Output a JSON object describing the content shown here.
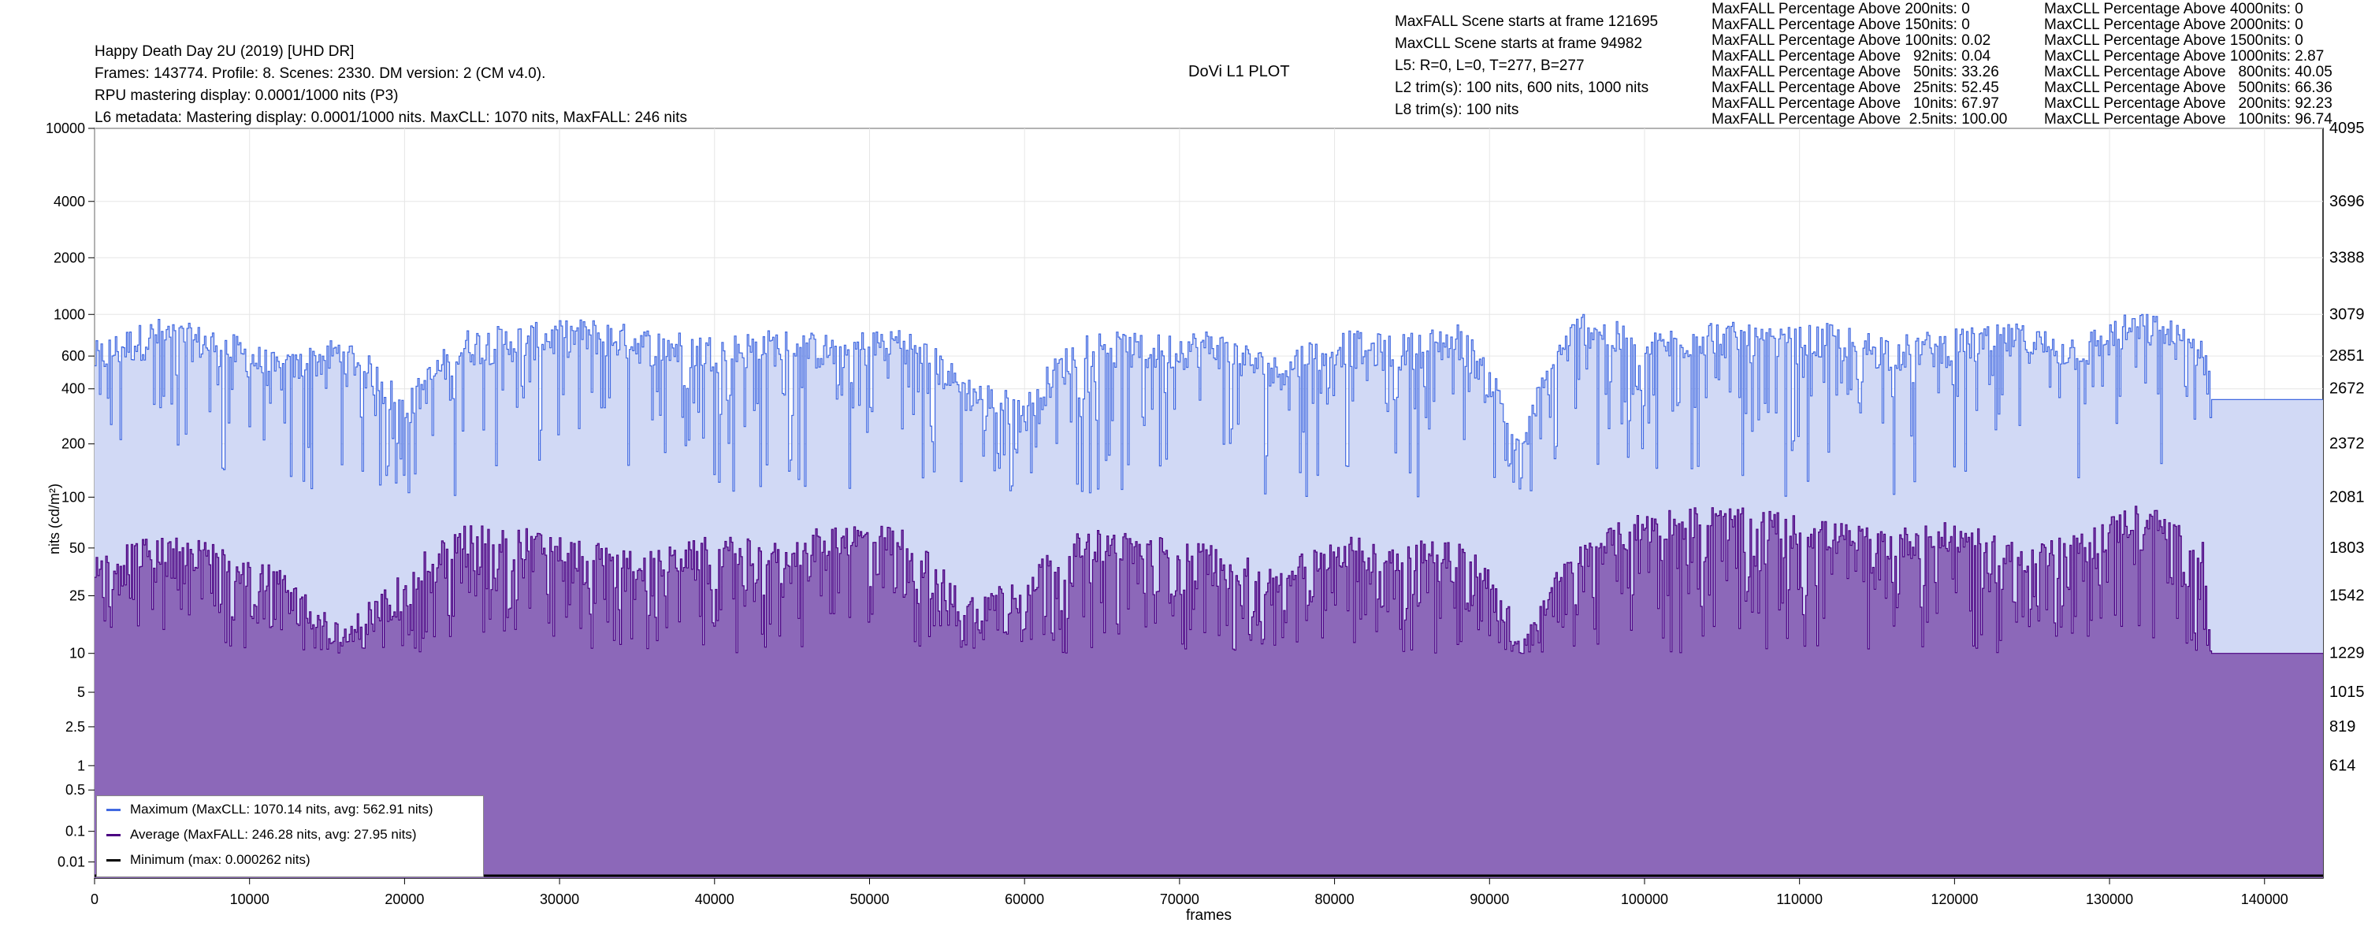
{
  "header": {
    "title": "Happy Death Day 2U (2019) [UHD DR]",
    "info": "Frames: 143774. Profile: 8. Scenes: 2330. DM version: 2 (CM v4.0).",
    "rpu": "RPU mastering display: 0.0001/1000 nits",
    "rpu_suffix": "(P3)",
    "l6": "L6 metadata: Mastering display: 0.0001/1000 nits. MaxCLL: 1070 nits, MaxFALL: 246 nits"
  },
  "plot_title": "DoVi L1 PLOT",
  "scene_info": [
    "MaxFALL Scene starts at frame 121695",
    "MaxCLL Scene starts at frame 94982",
    "L5: R=0, L=0, T=277, B=277",
    "L2 trim(s): 100 nits, 600 nits, 1000 nits",
    "L8 trim(s): 100 nits"
  ],
  "maxfall_stats": [
    "MaxFALL Percentage Above 200nits: 0",
    "MaxFALL Percentage Above 150nits: 0",
    "MaxFALL Percentage Above 100nits: 0.02",
    "MaxFALL Percentage Above   92nits: 0.04",
    "MaxFALL Percentage Above   50nits: 33.26",
    "MaxFALL Percentage Above   25nits: 52.45",
    "MaxFALL Percentage Above   10nits: 67.97",
    "MaxFALL Percentage Above  2.5nits: 100.00"
  ],
  "maxcll_stats": [
    "MaxCLL Percentage Above 4000nits: 0",
    "MaxCLL Percentage Above 2000nits: 0",
    "MaxCLL Percentage Above 1500nits: 0",
    "MaxCLL Percentage Above 1000nits: 2.87",
    "MaxCLL Percentage Above   800nits: 40.05",
    "MaxCLL Percentage Above   500nits: 66.36",
    "MaxCLL Percentage Above   200nits: 92.23",
    "MaxCLL Percentage Above   100nits: 96.74"
  ],
  "legend": [
    {
      "label": "Maximum (MaxCLL: 1070.14 nits, avg: 562.91 nits)",
      "color": "#4169e1"
    },
    {
      "label": "Average (MaxFALL: 246.28 nits, avg: 27.95 nits)",
      "color": "#4b0082"
    },
    {
      "label": "Minimum (max: 0.000262 nits)",
      "color": "#000000"
    }
  ],
  "colors": {
    "max_line": "#4169e1",
    "max_fill": "#d1d9f5",
    "avg_line": "#4b0082",
    "avg_fill": "#8c68b9",
    "min_line": "#000000",
    "grid": "#e6e6e6"
  },
  "chart_data": {
    "type": "area",
    "title": "DoVi L1 PLOT",
    "xlabel": "frames",
    "ylabel": "nits (cd/m²)",
    "xlim": [
      0,
      143774
    ],
    "x_ticks": [
      0,
      10000,
      20000,
      30000,
      40000,
      50000,
      60000,
      70000,
      80000,
      90000,
      100000,
      110000,
      120000,
      130000,
      140000
    ],
    "y_scale": "pq",
    "y_ticks_left": [
      "10000",
      "4000",
      "2000",
      "1000",
      "600",
      "400",
      "200",
      "100",
      "50",
      "25",
      "10",
      "5",
      "2.5",
      "1",
      "0.5",
      "0.1",
      "0.01"
    ],
    "y_ticks_right": [
      "4095",
      "3696",
      "3388",
      "3079",
      "2851",
      "2672",
      "2372",
      "2081",
      "1803",
      "1542",
      "1229",
      "1015",
      "819",
      "614"
    ],
    "grid": true,
    "legend_position": "bottom-left",
    "series": [
      {
        "name": "Maximum (MaxCLL: 1070.14 nits, avg: 562.91 nits)",
        "x": [
          0,
          4000,
          8000,
          12000,
          16000,
          20000,
          24000,
          28000,
          32000,
          36000,
          40000,
          44000,
          48000,
          52000,
          56000,
          60000,
          64000,
          68000,
          72000,
          76000,
          80000,
          84000,
          88000,
          92000,
          96000,
          100000,
          104000,
          108000,
          112000,
          116000,
          120000,
          124000,
          128000,
          132000,
          136000,
          136500,
          143774
        ],
        "values": [
          600,
          800,
          700,
          500,
          650,
          300,
          700,
          750,
          800,
          700,
          650,
          700,
          650,
          750,
          400,
          300,
          700,
          650,
          700,
          500,
          700,
          650,
          750,
          150,
          900,
          650,
          800,
          700,
          750,
          650,
          700,
          750,
          650,
          900,
          650,
          350,
          350
        ]
      },
      {
        "name": "Average (MaxFALL: 246.28 nits, avg: 27.95 nits)",
        "x": [
          0,
          4000,
          8000,
          12000,
          16000,
          20000,
          24000,
          28000,
          32000,
          36000,
          40000,
          44000,
          48000,
          52000,
          56000,
          60000,
          64000,
          68000,
          72000,
          76000,
          80000,
          84000,
          88000,
          92000,
          96000,
          100000,
          104000,
          108000,
          112000,
          116000,
          120000,
          124000,
          128000,
          132000,
          136000,
          136500,
          143774
        ],
        "values": [
          40,
          50,
          45,
          30,
          12,
          30,
          60,
          55,
          45,
          40,
          50,
          45,
          60,
          55,
          20,
          30,
          55,
          50,
          45,
          30,
          50,
          45,
          50,
          10,
          45,
          70,
          75,
          70,
          60,
          55,
          60,
          45,
          50,
          80,
          45,
          10,
          10
        ]
      },
      {
        "name": "Minimum (max: 0.000262 nits)",
        "x": [
          0,
          143774
        ],
        "values": [
          0.0001,
          0.0001
        ]
      }
    ]
  }
}
